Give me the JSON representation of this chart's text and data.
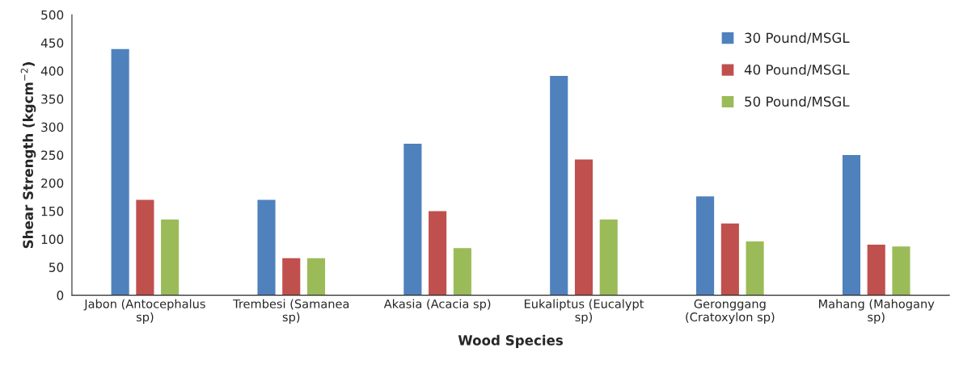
{
  "chart_data": {
    "type": "bar",
    "xlabel": "Wood Species",
    "ylabel": "Shear Strength (kgcm$^{−2}$)",
    "categories": [
      "Jabon (Antocephalus\nsp)",
      "Trembesi (Samanea\nsp)",
      "Akasia (Acacia sp)",
      "Eukaliptus (Eucalypt\nsp)",
      "Geronggang\n(Cratoxylon sp)",
      "Mahang (Mahogany\nsp)"
    ],
    "series": [
      {
        "name": "30 Pound/MSGL",
        "color": "#4f81bd",
        "values": [
          440,
          171,
          271,
          392,
          177,
          251
        ]
      },
      {
        "name": "40 Pound/MSGL",
        "color": "#c0504d",
        "values": [
          171,
          67,
          151,
          243,
          129,
          91
        ]
      },
      {
        "name": "50 Pound/MSGL",
        "color": "#9bbb59",
        "values": [
          136,
          67,
          85,
          136,
          97,
          88
        ]
      }
    ],
    "ylim": [
      0,
      500
    ],
    "yticks": [
      0,
      50,
      100,
      150,
      200,
      250,
      300,
      350,
      400,
      450,
      500
    ],
    "grid": false,
    "legend": "top right"
  }
}
